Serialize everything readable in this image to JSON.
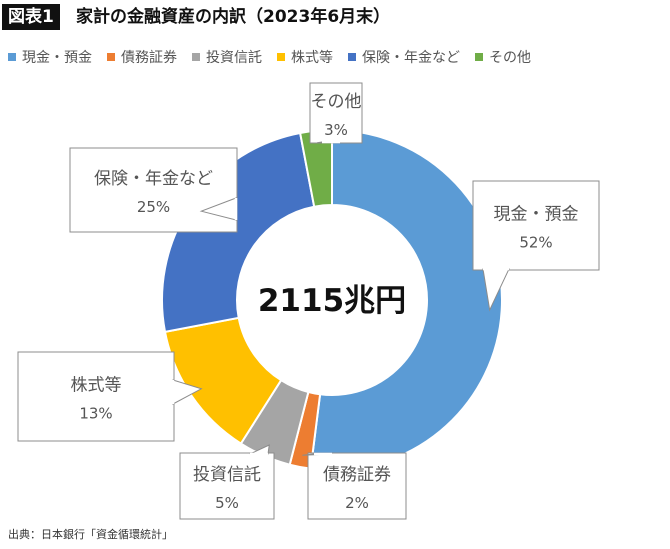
{
  "header": {
    "figure_label": "図表1",
    "title": "家計の金融資産の内訳（2023年6月末）"
  },
  "legend": [
    {
      "label": "現金・預金",
      "color": "#5b9bd5"
    },
    {
      "label": "債務証券",
      "color": "#ed7d31"
    },
    {
      "label": "投資信託",
      "color": "#a5a5a5"
    },
    {
      "label": "株式等",
      "color": "#ffc000"
    },
    {
      "label": "保険・年金など",
      "color": "#4472c4"
    },
    {
      "label": "その他",
      "color": "#70ad47"
    }
  ],
  "chart_data": {
    "type": "pie",
    "donut": true,
    "center_label": "2115兆円",
    "categories": [
      "現金・預金",
      "債務証券",
      "投資信託",
      "株式等",
      "保険・年金など",
      "その他"
    ],
    "values": [
      52,
      2,
      5,
      13,
      25,
      3
    ],
    "value_labels": [
      "52%",
      "2%",
      "5%",
      "13%",
      "25%",
      "3%"
    ],
    "colors": [
      "#5b9bd5",
      "#ed7d31",
      "#a5a5a5",
      "#ffc000",
      "#4472c4",
      "#70ad47"
    ],
    "legend_position": "top"
  },
  "source": "出典：日本銀行「資金循環統計」"
}
